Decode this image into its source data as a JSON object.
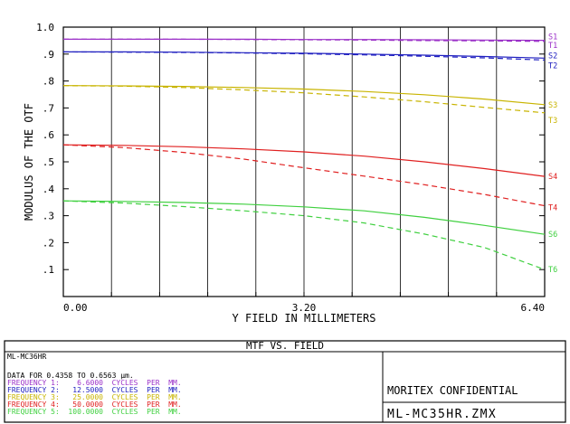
{
  "chart_data": {
    "type": "line",
    "title": "MTF VS. FIELD",
    "xlabel": "Y FIELD IN MILLIMETERS",
    "ylabel": "MODULUS OF THE OTF",
    "xlim": [
      0,
      6.4
    ],
    "ylim": [
      0,
      1.0
    ],
    "x_ticks": [
      "0.00",
      "3.20",
      "6.40"
    ],
    "y_ticks": [
      "1.0",
      ".9",
      ".8",
      ".7",
      ".6",
      ".5",
      ".4",
      ".3",
      ".2",
      ".1"
    ],
    "x": [
      0,
      0.8,
      1.6,
      2.4,
      3.2,
      4.0,
      4.8,
      5.6,
      6.4
    ],
    "series": [
      {
        "name": "S1",
        "values": [
          0.955,
          0.955,
          0.955,
          0.955,
          0.954,
          0.954,
          0.953,
          0.952,
          0.951
        ]
      },
      {
        "name": "T1",
        "values": [
          0.955,
          0.955,
          0.955,
          0.954,
          0.953,
          0.952,
          0.95,
          0.949,
          0.947
        ]
      },
      {
        "name": "S2",
        "values": [
          0.908,
          0.908,
          0.907,
          0.905,
          0.903,
          0.9,
          0.896,
          0.891,
          0.885
        ]
      },
      {
        "name": "T2",
        "values": [
          0.908,
          0.907,
          0.906,
          0.904,
          0.901,
          0.897,
          0.892,
          0.886,
          0.878
        ]
      },
      {
        "name": "S3",
        "values": [
          0.783,
          0.782,
          0.78,
          0.776,
          0.77,
          0.761,
          0.749,
          0.733,
          0.712
        ]
      },
      {
        "name": "T3",
        "values": [
          0.783,
          0.781,
          0.776,
          0.767,
          0.756,
          0.741,
          0.723,
          0.702,
          0.682
        ]
      },
      {
        "name": "S4",
        "values": [
          0.563,
          0.561,
          0.556,
          0.548,
          0.537,
          0.521,
          0.5,
          0.475,
          0.446
        ]
      },
      {
        "name": "T4",
        "values": [
          0.563,
          0.553,
          0.535,
          0.51,
          0.478,
          0.447,
          0.415,
          0.379,
          0.337
        ]
      },
      {
        "name": "S6",
        "values": [
          0.355,
          0.353,
          0.349,
          0.343,
          0.333,
          0.318,
          0.294,
          0.264,
          0.231
        ]
      },
      {
        "name": "T6",
        "values": [
          0.355,
          0.347,
          0.334,
          0.318,
          0.3,
          0.273,
          0.232,
          0.182,
          0.1
        ]
      }
    ],
    "colors": {
      "S1": "#9b30c8",
      "T1": "#9b30c8",
      "S2": "#2020c0",
      "T2": "#2020c0",
      "S3": "#c8b400",
      "T3": "#c8b400",
      "S4": "#e02020",
      "T4": "#e02020",
      "S6": "#40d040",
      "T6": "#40d040"
    },
    "dashed": [
      "T1",
      "T2",
      "T3",
      "T4",
      "T6"
    ],
    "grid": "x-only"
  },
  "footer": {
    "title": "MTF VS. FIELD",
    "lens_name": "ML-MC36HR",
    "data_line": "DATA FOR 0.4358 TO 0.6563 µm.",
    "frequencies": [
      {
        "text": "FREQUENCY 1:    6.6000  CYCLES  PER  MM.",
        "color": "#9b30c8"
      },
      {
        "text": "FREQUENCY 2:   12.5000  CYCLES  PER  MM.",
        "color": "#2020c0"
      },
      {
        "text": "FREQUENCY 3:   25.0000  CYCLES  PER  MM.",
        "color": "#c8b400"
      },
      {
        "text": "FREQUENCY 4:   50.0000  CYCLES  PER  MM.",
        "color": "#e02020"
      },
      {
        "text": "FREQUENCY 5:  100.0000  CYCLES  PER  MM.",
        "color": "#40d040"
      }
    ],
    "confidential": "MORITEX CONFIDENTIAL",
    "filename": "ML-MC35HR.ZMX"
  }
}
